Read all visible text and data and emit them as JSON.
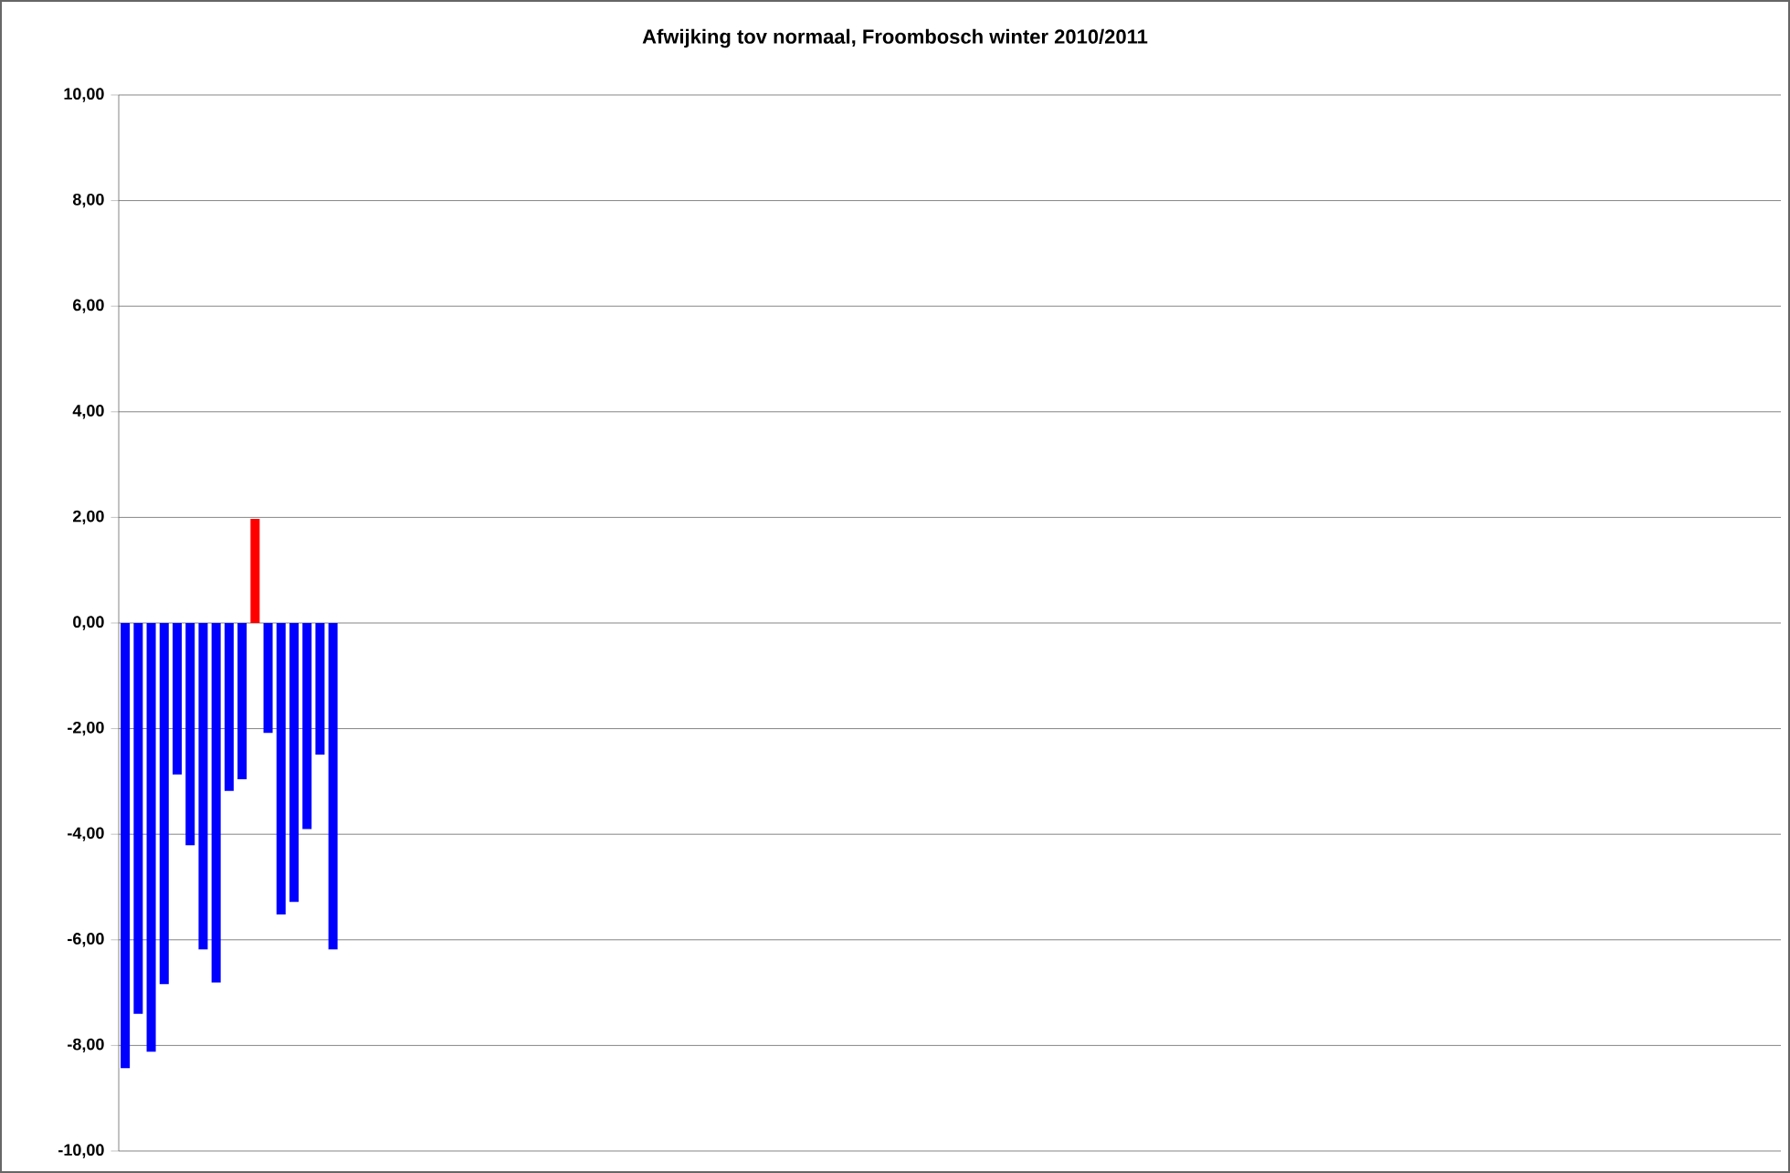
{
  "chart_data": {
    "type": "bar",
    "title": "Afwijking tov normaal, Froombosch winter 2010/2011",
    "categories": [
      null,
      null,
      null,
      null,
      null,
      null,
      null,
      null,
      null,
      null,
      null,
      null,
      null,
      null,
      null,
      null,
      null,
      null,
      null,
      null,
      null,
      null,
      null,
      null,
      null,
      null,
      null,
      null,
      null,
      null,
      null,
      null,
      null,
      null,
      null,
      null,
      null,
      null,
      null,
      null,
      null,
      null,
      null,
      null,
      null,
      null,
      null,
      null,
      null,
      null,
      null,
      null,
      null,
      null,
      null,
      null,
      null,
      null,
      null,
      null,
      null,
      null,
      null,
      null,
      null,
      null,
      null,
      null,
      null,
      null,
      null,
      null,
      null,
      null,
      null,
      null,
      null,
      null,
      null,
      null,
      null,
      null,
      null,
      null,
      null,
      null,
      null,
      null,
      null,
      null,
      null,
      null,
      null,
      null,
      null,
      null,
      null,
      null,
      null,
      null,
      null,
      null,
      null,
      null,
      null,
      null,
      null,
      null,
      null,
      null,
      null,
      null,
      null,
      null,
      null,
      null,
      null,
      null,
      null,
      null,
      null,
      null,
      null,
      null,
      null,
      null,
      null,
      null
    ],
    "values": [
      -8.43,
      -7.4,
      -8.12,
      -6.84,
      -2.87,
      -4.21,
      -6.18,
      -6.81,
      -3.18,
      -2.96,
      1.97,
      -2.08,
      -5.52,
      -5.28,
      -3.9,
      -2.49,
      -6.18,
      null,
      null,
      null,
      null,
      null,
      null,
      null,
      null,
      null,
      null,
      null,
      null,
      null,
      null,
      null,
      null,
      null,
      null,
      null,
      null,
      null,
      null,
      null,
      null,
      null,
      null,
      null,
      null,
      null,
      null,
      null,
      null,
      null,
      null,
      null,
      null,
      null,
      null,
      null,
      null,
      null,
      null,
      null,
      null,
      null,
      null,
      null,
      null,
      null,
      null,
      null,
      null,
      null,
      null,
      null,
      null,
      null,
      null,
      null,
      null,
      null,
      null,
      null,
      null,
      null,
      null,
      null,
      null,
      null,
      null,
      null,
      null,
      null,
      null,
      null,
      null,
      null,
      null,
      null,
      null,
      null,
      null,
      null,
      null,
      null,
      null,
      null,
      null,
      null,
      null,
      null,
      null,
      null,
      null,
      null,
      null,
      null,
      null,
      null,
      null,
      null,
      null,
      null,
      null,
      null,
      null,
      null,
      null,
      null,
      null,
      null
    ],
    "colors": [
      "#0000ff",
      "#0000ff",
      "#0000ff",
      "#0000ff",
      "#0000ff",
      "#0000ff",
      "#0000ff",
      "#0000ff",
      "#0000ff",
      "#0000ff",
      "#ff0000",
      "#0000ff",
      "#0000ff",
      "#0000ff",
      "#0000ff",
      "#0000ff",
      "#0000ff",
      "#0000ff",
      "#0000ff",
      "#0000ff",
      "#0000ff",
      "#0000ff",
      "#0000ff",
      "#0000ff",
      "#0000ff",
      "#0000ff",
      "#0000ff",
      "#0000ff",
      "#0000ff",
      "#0000ff",
      "#0000ff",
      "#0000ff",
      "#0000ff",
      "#0000ff",
      "#0000ff",
      "#0000ff",
      "#0000ff",
      "#0000ff",
      "#0000ff",
      "#0000ff",
      "#0000ff",
      "#0000ff",
      "#0000ff",
      "#0000ff",
      "#0000ff",
      "#0000ff",
      "#0000ff",
      "#0000ff",
      "#0000ff",
      "#0000ff",
      "#0000ff",
      "#0000ff",
      "#0000ff",
      "#0000ff",
      "#0000ff",
      "#0000ff",
      "#0000ff",
      "#0000ff",
      "#0000ff",
      "#0000ff",
      "#0000ff",
      "#0000ff",
      "#0000ff",
      "#0000ff",
      "#0000ff",
      "#0000ff",
      "#0000ff",
      "#0000ff",
      "#0000ff",
      "#0000ff",
      "#0000ff",
      "#0000ff",
      "#0000ff",
      "#0000ff",
      "#0000ff",
      "#0000ff",
      "#0000ff",
      "#0000ff",
      "#0000ff",
      "#0000ff",
      "#0000ff",
      "#0000ff",
      "#0000ff",
      "#0000ff",
      "#0000ff",
      "#0000ff",
      "#0000ff",
      "#0000ff",
      "#0000ff",
      "#0000ff",
      "#0000ff",
      "#0000ff",
      "#0000ff",
      "#0000ff",
      "#0000ff",
      "#0000ff",
      "#0000ff",
      "#0000ff",
      "#0000ff",
      "#0000ff",
      "#0000ff",
      "#0000ff",
      "#0000ff",
      "#0000ff",
      "#0000ff",
      "#0000ff",
      "#0000ff",
      "#0000ff",
      "#0000ff",
      "#0000ff",
      "#0000ff",
      "#0000ff",
      "#0000ff",
      "#0000ff",
      "#0000ff",
      "#0000ff",
      "#0000ff",
      "#0000ff",
      "#0000ff",
      "#0000ff",
      "#0000ff",
      "#0000ff",
      "#0000ff",
      "#0000ff",
      "#0000ff",
      "#0000ff",
      "#0000ff",
      "#0000ff"
    ],
    "ylim": [
      -10,
      10
    ],
    "yticks": [
      {
        "value": -10,
        "label": "-10,00"
      },
      {
        "value": -8,
        "label": "-8,00"
      },
      {
        "value": -6,
        "label": "-6,00"
      },
      {
        "value": -4,
        "label": "-4,00"
      },
      {
        "value": -2,
        "label": "-2,00"
      },
      {
        "value": 0,
        "label": "0,00"
      },
      {
        "value": 2,
        "label": "2,00"
      },
      {
        "value": 4,
        "label": "4,00"
      },
      {
        "value": 6,
        "label": "6,00"
      },
      {
        "value": 8,
        "label": "8,00"
      },
      {
        "value": 10,
        "label": "10,00"
      }
    ],
    "grid": "y",
    "tick_labels": "y"
  }
}
